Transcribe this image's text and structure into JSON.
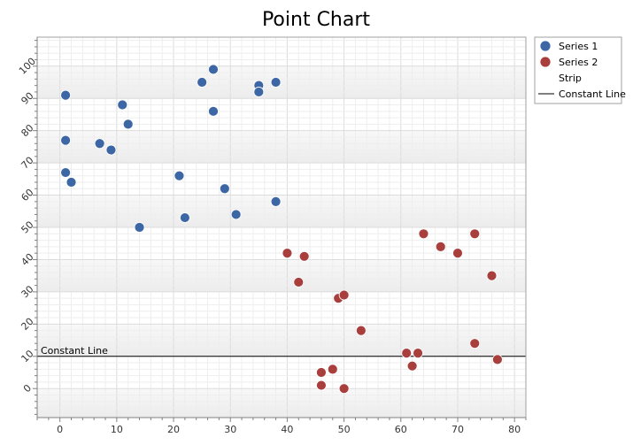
{
  "chart_data": {
    "type": "scatter",
    "title": "Point Chart",
    "xlabel": "",
    "ylabel": "",
    "xlim": [
      -4,
      82
    ],
    "ylim": [
      -9,
      109
    ],
    "x_ticks": [
      0,
      10,
      20,
      30,
      40,
      50,
      60,
      70,
      80
    ],
    "y_ticks": [
      0,
      10,
      20,
      30,
      40,
      50,
      60,
      70,
      80,
      90,
      100
    ],
    "grid": true,
    "legend_position": "top-right",
    "strips": [
      [
        -10,
        0
      ],
      [
        10,
        20
      ],
      [
        30,
        40
      ],
      [
        50,
        60
      ],
      [
        70,
        80
      ],
      [
        90,
        100
      ]
    ],
    "constant_line": {
      "label": "Constant Line",
      "value": 10
    },
    "series": [
      {
        "name": "Series 1",
        "color": "#3d67a4",
        "points": [
          [
            1,
            91
          ],
          [
            1,
            77
          ],
          [
            1,
            67
          ],
          [
            2,
            64
          ],
          [
            7,
            76
          ],
          [
            9,
            74
          ],
          [
            11,
            88
          ],
          [
            12,
            82
          ],
          [
            14,
            50
          ],
          [
            21,
            66
          ],
          [
            22,
            53
          ],
          [
            25,
            95
          ],
          [
            27,
            99
          ],
          [
            27,
            86
          ],
          [
            29,
            62
          ],
          [
            31,
            54
          ],
          [
            35,
            94
          ],
          [
            35,
            92
          ],
          [
            38,
            95
          ],
          [
            38,
            58
          ]
        ]
      },
      {
        "name": "Series 2",
        "color": "#a83f3d",
        "points": [
          [
            40,
            42
          ],
          [
            42,
            33
          ],
          [
            43,
            41
          ],
          [
            46,
            5
          ],
          [
            46,
            1
          ],
          [
            48,
            6
          ],
          [
            49,
            28
          ],
          [
            50,
            29
          ],
          [
            50,
            0
          ],
          [
            53,
            18
          ],
          [
            61,
            11
          ],
          [
            62,
            7
          ],
          [
            63,
            11
          ],
          [
            64,
            48
          ],
          [
            67,
            44
          ],
          [
            70,
            42
          ],
          [
            73,
            48
          ],
          [
            73,
            14
          ],
          [
            76,
            35
          ],
          [
            77,
            9
          ]
        ]
      }
    ]
  },
  "legend": {
    "items": [
      {
        "label": "Series 1",
        "kind": "marker",
        "color": "#3d67a4"
      },
      {
        "label": "Series 2",
        "kind": "marker",
        "color": "#a83f3d"
      },
      {
        "label": "Strip",
        "kind": "none",
        "color": ""
      },
      {
        "label": "Constant Line",
        "kind": "line",
        "color": "#000000"
      }
    ]
  }
}
